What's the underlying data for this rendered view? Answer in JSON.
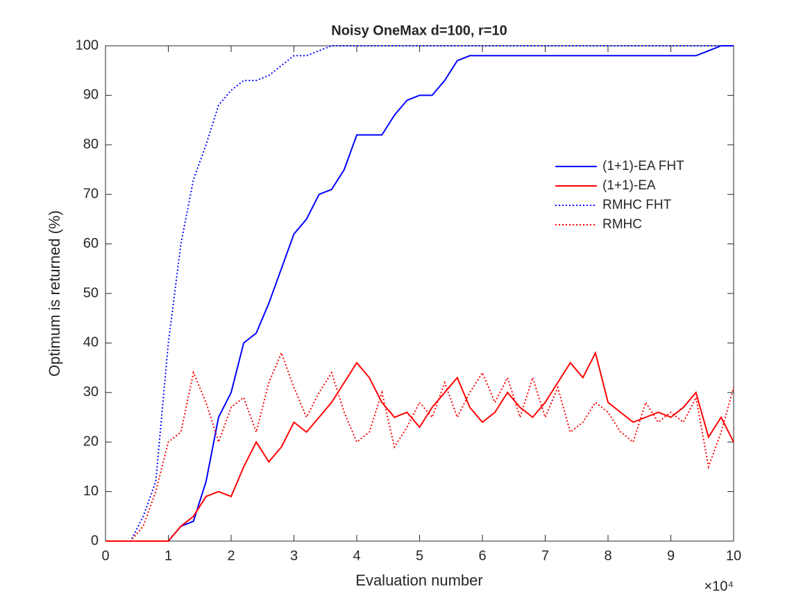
{
  "chart_data": {
    "type": "line",
    "title": "Noisy OneMax d=100, r=10",
    "xlabel": "Evaluation number",
    "ylabel": "Optimum is returned (%)",
    "x_multiplier": "×10⁴",
    "x": [
      0,
      0.2,
      0.4,
      0.6,
      0.8,
      1,
      1.2,
      1.4,
      1.6,
      1.8,
      2,
      2.2,
      2.4,
      2.6,
      2.8,
      3,
      3.2,
      3.4,
      3.6,
      3.8,
      4,
      4.2,
      4.4,
      4.6,
      4.8,
      5,
      5.2,
      5.4,
      5.6,
      5.8,
      6,
      6.2,
      6.4,
      6.6,
      6.8,
      7,
      7.2,
      7.4,
      7.6,
      7.8,
      8,
      8.2,
      8.4,
      8.6,
      8.8,
      9,
      9.2,
      9.4,
      9.6,
      9.8,
      10
    ],
    "series": [
      {
        "name": "(1+1)-EA FHT",
        "color": "#0000ff",
        "dash": "solid",
        "values": [
          0,
          0,
          0,
          0,
          0,
          0,
          3,
          4,
          12,
          25,
          30,
          40,
          42,
          48,
          55,
          62,
          65,
          70,
          71,
          75,
          82,
          82,
          82,
          86,
          89,
          90,
          90,
          93,
          97,
          98,
          98,
          98,
          98,
          98,
          98,
          98,
          98,
          98,
          98,
          98,
          98,
          98,
          98,
          98,
          98,
          98,
          98,
          98,
          99,
          100,
          100
        ]
      },
      {
        "name": "(1+1)-EA",
        "color": "#ff0000",
        "dash": "solid",
        "values": [
          0,
          0,
          0,
          0,
          0,
          0,
          3,
          5,
          9,
          10,
          9,
          15,
          20,
          16,
          19,
          24,
          22,
          25,
          28,
          32,
          36,
          33,
          28,
          25,
          26,
          23,
          27,
          30,
          33,
          27,
          24,
          26,
          30,
          27,
          25,
          28,
          32,
          36,
          33,
          38,
          28,
          26,
          24,
          25,
          26,
          25,
          27,
          30,
          21,
          25,
          20
        ]
      },
      {
        "name": "RMHC FHT",
        "color": "#0000ff",
        "dash": "dotted",
        "values": [
          0,
          0,
          0,
          5,
          12,
          40,
          60,
          73,
          80,
          88,
          91,
          93,
          93,
          94,
          96,
          98,
          98,
          99,
          100,
          100,
          100,
          100,
          100,
          100,
          100,
          100,
          100,
          100,
          100,
          100,
          100,
          100,
          100,
          100,
          100,
          100,
          100,
          100,
          100,
          100,
          100,
          100,
          100,
          100,
          100,
          100,
          100,
          100,
          100,
          100,
          100
        ]
      },
      {
        "name": "RMHC",
        "color": "#ff0000",
        "dash": "dotted",
        "values": [
          0,
          0,
          0,
          3,
          10,
          20,
          22,
          34,
          28,
          20,
          27,
          29,
          22,
          32,
          38,
          31,
          25,
          30,
          34,
          26,
          20,
          22,
          30,
          19,
          23,
          28,
          25,
          32,
          25,
          30,
          34,
          28,
          33,
          25,
          33,
          25,
          31,
          22,
          24,
          28,
          26,
          22,
          20,
          28,
          24,
          26,
          24,
          29,
          15,
          22,
          31
        ]
      }
    ],
    "xlim": [
      0,
      10
    ],
    "xticks": [
      0,
      1,
      2,
      3,
      4,
      5,
      6,
      7,
      8,
      9,
      10
    ],
    "ylim": [
      0,
      100
    ],
    "yticks": [
      0,
      10,
      20,
      30,
      40,
      50,
      60,
      70,
      80,
      90,
      100
    ],
    "grid": false,
    "legend": "right"
  }
}
